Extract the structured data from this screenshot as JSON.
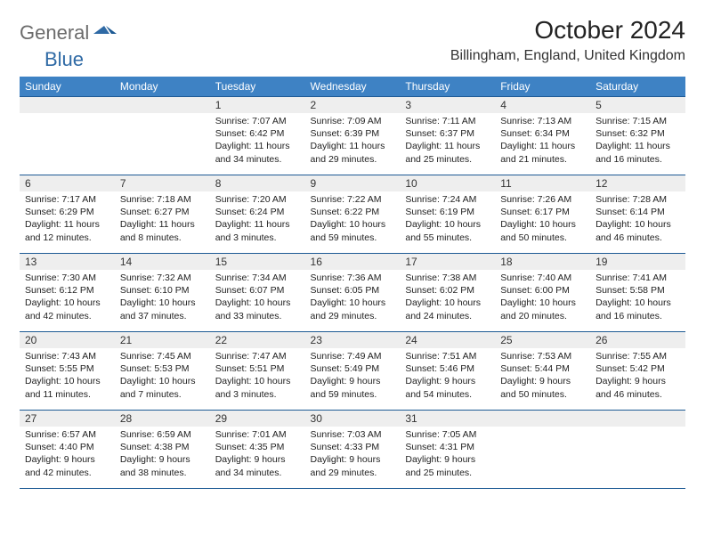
{
  "logo": {
    "part1": "General",
    "part2": "Blue"
  },
  "title": "October 2024",
  "location": "Billingham, England, United Kingdom",
  "colors": {
    "header_bg": "#3e82c4",
    "header_border": "#1d5a94",
    "daynum_bg": "#eeeeee",
    "logo_gray": "#6b6b6b",
    "logo_blue": "#2f6aa5"
  },
  "day_headers": [
    "Sunday",
    "Monday",
    "Tuesday",
    "Wednesday",
    "Thursday",
    "Friday",
    "Saturday"
  ],
  "weeks": [
    [
      {
        "blank": true
      },
      {
        "blank": true
      },
      {
        "num": "1",
        "sunrise": "7:07 AM",
        "sunset": "6:42 PM",
        "daylight": "11 hours and 34 minutes."
      },
      {
        "num": "2",
        "sunrise": "7:09 AM",
        "sunset": "6:39 PM",
        "daylight": "11 hours and 29 minutes."
      },
      {
        "num": "3",
        "sunrise": "7:11 AM",
        "sunset": "6:37 PM",
        "daylight": "11 hours and 25 minutes."
      },
      {
        "num": "4",
        "sunrise": "7:13 AM",
        "sunset": "6:34 PM",
        "daylight": "11 hours and 21 minutes."
      },
      {
        "num": "5",
        "sunrise": "7:15 AM",
        "sunset": "6:32 PM",
        "daylight": "11 hours and 16 minutes."
      }
    ],
    [
      {
        "num": "6",
        "sunrise": "7:17 AM",
        "sunset": "6:29 PM",
        "daylight": "11 hours and 12 minutes."
      },
      {
        "num": "7",
        "sunrise": "7:18 AM",
        "sunset": "6:27 PM",
        "daylight": "11 hours and 8 minutes."
      },
      {
        "num": "8",
        "sunrise": "7:20 AM",
        "sunset": "6:24 PM",
        "daylight": "11 hours and 3 minutes."
      },
      {
        "num": "9",
        "sunrise": "7:22 AM",
        "sunset": "6:22 PM",
        "daylight": "10 hours and 59 minutes."
      },
      {
        "num": "10",
        "sunrise": "7:24 AM",
        "sunset": "6:19 PM",
        "daylight": "10 hours and 55 minutes."
      },
      {
        "num": "11",
        "sunrise": "7:26 AM",
        "sunset": "6:17 PM",
        "daylight": "10 hours and 50 minutes."
      },
      {
        "num": "12",
        "sunrise": "7:28 AM",
        "sunset": "6:14 PM",
        "daylight": "10 hours and 46 minutes."
      }
    ],
    [
      {
        "num": "13",
        "sunrise": "7:30 AM",
        "sunset": "6:12 PM",
        "daylight": "10 hours and 42 minutes."
      },
      {
        "num": "14",
        "sunrise": "7:32 AM",
        "sunset": "6:10 PM",
        "daylight": "10 hours and 37 minutes."
      },
      {
        "num": "15",
        "sunrise": "7:34 AM",
        "sunset": "6:07 PM",
        "daylight": "10 hours and 33 minutes."
      },
      {
        "num": "16",
        "sunrise": "7:36 AM",
        "sunset": "6:05 PM",
        "daylight": "10 hours and 29 minutes."
      },
      {
        "num": "17",
        "sunrise": "7:38 AM",
        "sunset": "6:02 PM",
        "daylight": "10 hours and 24 minutes."
      },
      {
        "num": "18",
        "sunrise": "7:40 AM",
        "sunset": "6:00 PM",
        "daylight": "10 hours and 20 minutes."
      },
      {
        "num": "19",
        "sunrise": "7:41 AM",
        "sunset": "5:58 PM",
        "daylight": "10 hours and 16 minutes."
      }
    ],
    [
      {
        "num": "20",
        "sunrise": "7:43 AM",
        "sunset": "5:55 PM",
        "daylight": "10 hours and 11 minutes."
      },
      {
        "num": "21",
        "sunrise": "7:45 AM",
        "sunset": "5:53 PM",
        "daylight": "10 hours and 7 minutes."
      },
      {
        "num": "22",
        "sunrise": "7:47 AM",
        "sunset": "5:51 PM",
        "daylight": "10 hours and 3 minutes."
      },
      {
        "num": "23",
        "sunrise": "7:49 AM",
        "sunset": "5:49 PM",
        "daylight": "9 hours and 59 minutes."
      },
      {
        "num": "24",
        "sunrise": "7:51 AM",
        "sunset": "5:46 PM",
        "daylight": "9 hours and 54 minutes."
      },
      {
        "num": "25",
        "sunrise": "7:53 AM",
        "sunset": "5:44 PM",
        "daylight": "9 hours and 50 minutes."
      },
      {
        "num": "26",
        "sunrise": "7:55 AM",
        "sunset": "5:42 PM",
        "daylight": "9 hours and 46 minutes."
      }
    ],
    [
      {
        "num": "27",
        "sunrise": "6:57 AM",
        "sunset": "4:40 PM",
        "daylight": "9 hours and 42 minutes."
      },
      {
        "num": "28",
        "sunrise": "6:59 AM",
        "sunset": "4:38 PM",
        "daylight": "9 hours and 38 minutes."
      },
      {
        "num": "29",
        "sunrise": "7:01 AM",
        "sunset": "4:35 PM",
        "daylight": "9 hours and 34 minutes."
      },
      {
        "num": "30",
        "sunrise": "7:03 AM",
        "sunset": "4:33 PM",
        "daylight": "9 hours and 29 minutes."
      },
      {
        "num": "31",
        "sunrise": "7:05 AM",
        "sunset": "4:31 PM",
        "daylight": "9 hours and 25 minutes."
      },
      {
        "blank": true
      },
      {
        "blank": true
      }
    ]
  ],
  "labels": {
    "sunrise": "Sunrise:",
    "sunset": "Sunset:",
    "daylight": "Daylight:"
  }
}
